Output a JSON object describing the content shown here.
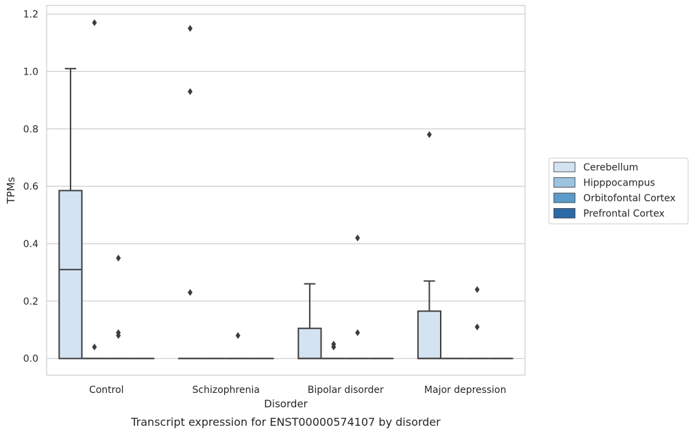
{
  "chart_data": {
    "type": "box",
    "xlabel": "Disorder",
    "ylabel": "TPMs",
    "caption": "Transcript expression for ENST00000574107 by disorder",
    "ylim": [
      -0.058,
      1.23
    ],
    "y_ticks": [
      "0.0",
      "0.2",
      "0.4",
      "0.6",
      "0.8",
      "1.0",
      "1.2"
    ],
    "grid": "horizontal",
    "legend_position": "right",
    "categories": [
      "Control",
      "Schizophrenia",
      "Bipolar disorder",
      "Major depression"
    ],
    "series": [
      {
        "name": "Cerebellum",
        "color": "#d4e3f1",
        "boxes": [
          {
            "min": 0,
            "q1": 0,
            "median": 0.31,
            "q3": 0.585,
            "max": 1.01,
            "outliers": []
          },
          {
            "min": 0,
            "q1": 0,
            "median": 0,
            "q3": 0,
            "max": 0,
            "outliers": [
              1.15,
              0.93,
              0.23
            ]
          },
          {
            "min": 0,
            "q1": 0,
            "median": 0,
            "q3": 0.105,
            "max": 0.26,
            "outliers": []
          },
          {
            "min": 0,
            "q1": 0,
            "median": 0,
            "q3": 0.165,
            "max": 0.27,
            "outliers": [
              0.78
            ]
          }
        ]
      },
      {
        "name": "Hipppocampus",
        "color": "#9cc4de",
        "boxes": [
          {
            "min": 0,
            "q1": 0,
            "median": 0,
            "q3": 0,
            "max": 0,
            "outliers": [
              1.17,
              0.04
            ]
          },
          {
            "min": 0,
            "q1": 0,
            "median": 0,
            "q3": 0,
            "max": 0,
            "outliers": []
          },
          {
            "min": 0,
            "q1": 0,
            "median": 0,
            "q3": 0,
            "max": 0,
            "outliers": [
              0.05,
              0.04
            ]
          },
          {
            "min": 0,
            "q1": 0,
            "median": 0,
            "q3": 0,
            "max": 0,
            "outliers": []
          }
        ]
      },
      {
        "name": "Orbitofontal Cortex",
        "color": "#5b9bc9",
        "boxes": [
          {
            "min": 0,
            "q1": 0,
            "median": 0,
            "q3": 0,
            "max": 0,
            "outliers": [
              0.35,
              0.09,
              0.08
            ]
          },
          {
            "min": 0,
            "q1": 0,
            "median": 0,
            "q3": 0,
            "max": 0,
            "outliers": [
              0.08
            ]
          },
          {
            "min": 0,
            "q1": 0,
            "median": 0,
            "q3": 0,
            "max": 0,
            "outliers": [
              0.42,
              0.09
            ]
          },
          {
            "min": 0,
            "q1": 0,
            "median": 0,
            "q3": 0,
            "max": 0,
            "outliers": [
              0.24,
              0.11
            ]
          }
        ]
      },
      {
        "name": "Prefrontal Cortex",
        "color": "#2b6aa6",
        "boxes": [
          {
            "min": 0,
            "q1": 0,
            "median": 0,
            "q3": 0,
            "max": 0,
            "outliers": []
          },
          {
            "min": 0,
            "q1": 0,
            "median": 0,
            "q3": 0,
            "max": 0,
            "outliers": []
          },
          {
            "min": 0,
            "q1": 0,
            "median": 0,
            "q3": 0,
            "max": 0,
            "outliers": []
          },
          {
            "min": 0,
            "q1": 0,
            "median": 0,
            "q3": 0,
            "max": 0,
            "outliers": []
          }
        ]
      }
    ]
  }
}
